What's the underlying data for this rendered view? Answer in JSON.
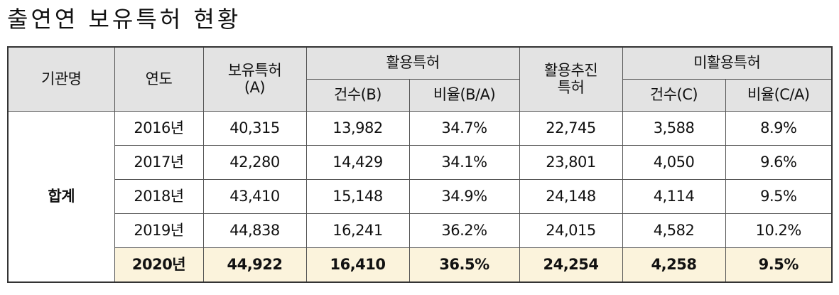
{
  "title": "출연연 보유특허 현황",
  "table": {
    "header_row1": [
      "기관명",
      "연도",
      "보유특허\n(A)",
      "활용특허",
      "활용추진\n특허",
      "미활용특허"
    ],
    "header_row2": [
      "건수(B)",
      "비율(B/A)",
      "건수(C)",
      "비율(C/A)"
    ],
    "group": "합계",
    "rows": [
      [
        "2016년",
        "40,315",
        "13,982",
        "34.7%",
        "22,745",
        "3,588",
        "8.9%"
      ],
      [
        "2017년",
        "42,280",
        "14,429",
        "34.1%",
        "23,801",
        "4,050",
        "9.6%"
      ],
      [
        "2018년",
        "43,410",
        "15,148",
        "34.9%",
        "24,148",
        "4,114",
        "9.5%"
      ],
      [
        "2019년",
        "44,838",
        "16,241",
        "36.2%",
        "24,015",
        "4,582",
        "10.2%"
      ],
      [
        "2020년",
        "44,922",
        "16,410",
        "36.5%",
        "24,254",
        "4,258",
        "9.5%"
      ]
    ]
  }
}
